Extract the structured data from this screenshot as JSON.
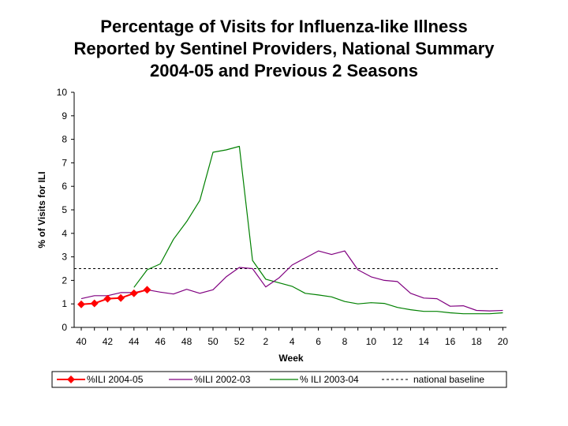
{
  "chart_data": {
    "type": "line",
    "title_lines": [
      "Percentage of Visits for Influenza-like Illness",
      "Reported by Sentinel Providers, National Summary",
      "2004-05 and Previous 2 Seasons"
    ],
    "xlabel": "Week",
    "ylabel": "% of Visits for ILI",
    "ylim": [
      0,
      10
    ],
    "yticks": [
      0,
      1,
      2,
      3,
      4,
      5,
      6,
      7,
      8,
      9,
      10
    ],
    "xticks": [
      "40",
      "42",
      "44",
      "46",
      "48",
      "50",
      "52",
      "2",
      "4",
      "6",
      "8",
      "10",
      "12",
      "14",
      "16",
      "18",
      "20"
    ],
    "series": [
      {
        "name": "%ILI 2004-05",
        "color": "#ff0000",
        "markers": true,
        "values": [
          0.98,
          1.02,
          1.22,
          1.25,
          1.45,
          1.6
        ]
      },
      {
        "name": "%ILI 2002-03",
        "color": "#800080",
        "markers": false,
        "values": [
          1.22,
          1.35,
          1.35,
          1.48,
          1.48,
          1.6,
          1.5,
          1.42,
          1.62,
          1.45,
          1.6,
          2.15,
          2.55,
          2.5,
          1.72,
          2.1,
          2.65,
          2.95,
          3.25,
          3.1,
          3.25,
          2.45,
          2.15,
          2.0,
          1.95,
          1.45,
          1.25,
          1.22,
          0.9,
          0.92,
          0.72,
          0.7,
          0.72
        ]
      },
      {
        "name": "% ILI 2003-04",
        "color": "#008000",
        "markers": false,
        "values": [
          null,
          null,
          null,
          null,
          1.7,
          2.45,
          2.7,
          3.75,
          4.5,
          5.4,
          7.45,
          7.55,
          7.7,
          2.85,
          2.05,
          1.9,
          1.75,
          1.45,
          1.38,
          1.3,
          1.1,
          1.0,
          1.05,
          1.02,
          0.85,
          0.75,
          0.68,
          0.68,
          0.62,
          0.58,
          0.58,
          0.58,
          0.62
        ]
      }
    ],
    "baseline": {
      "name": "national baseline",
      "value": 2.5,
      "color": "#000000"
    },
    "legend_position": "bottom"
  }
}
